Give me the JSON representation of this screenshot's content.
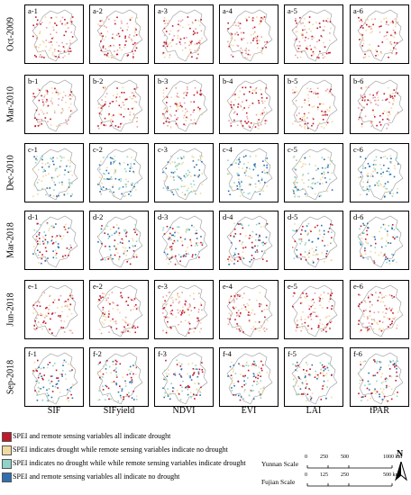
{
  "row_labels": [
    "Oct-2009",
    "Mar-2010",
    "Dec-2010",
    "Mar-2018",
    "Jun-2018",
    "Sep-2018"
  ],
  "column_labels": [
    "SIF",
    "SIFyield",
    "NDVI",
    "EVI",
    "LAI",
    "fPAR"
  ],
  "panel_labels": [
    [
      "a-1",
      "a-2",
      "a-3",
      "a-4",
      "a-5",
      "a-6"
    ],
    [
      "b-1",
      "b-2",
      "b-3",
      "b-4",
      "b-5",
      "b-6"
    ],
    [
      "c-1",
      "c-2",
      "c-3",
      "c-4",
      "c-5",
      "c-6"
    ],
    [
      "d-1",
      "d-2",
      "d-3",
      "d-4",
      "d-5",
      "d-6"
    ],
    [
      "e-1",
      "e-2",
      "e-3",
      "e-4",
      "e-5",
      "e-6"
    ],
    [
      "f-1",
      "f-2",
      "f-3",
      "f-4",
      "f-5",
      "f-6"
    ]
  ],
  "legend": [
    {
      "label": "SPEI and remote sensing variables all indicate drought",
      "color": "#c0182c"
    },
    {
      "label": "SPEI indicates drought while remote sensing variables indicate no drought",
      "color": "#f2d9a0"
    },
    {
      "label": "SPEI indicates no drought while while remote sensing variables indicate drought",
      "color": "#8fd4c6"
    },
    {
      "label": "SPEI and remote sensing variables all indicate no drought",
      "color": "#2f6fb0"
    }
  ],
  "scales": {
    "yunnan": {
      "name": "Yunnan Scale",
      "ticks": [
        "0",
        "250",
        "500",
        "1000 km"
      ]
    },
    "fujian": {
      "name": "Fujian Scale",
      "ticks": [
        "0",
        "125",
        "250",
        "500 km"
      ]
    }
  },
  "north_label": "N"
}
